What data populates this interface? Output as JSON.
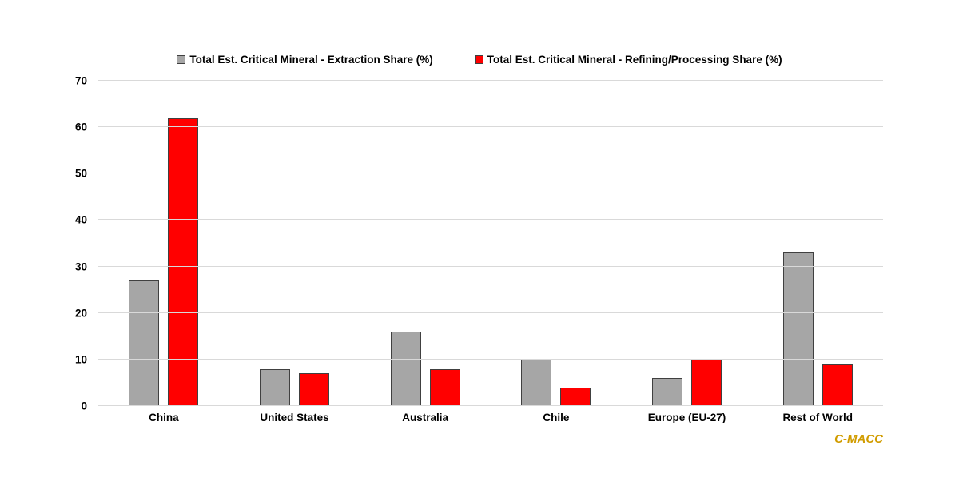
{
  "watermark": {
    "text": "C-MACC",
    "color": "#d19c00"
  },
  "chart_data": {
    "type": "bar",
    "title": "",
    "xlabel": "",
    "ylabel": "",
    "categories": [
      "China",
      "United States",
      "Australia",
      "Chile",
      "Europe (EU-27)",
      "Rest of World"
    ],
    "series": [
      {
        "name": "Total Est. Critical Mineral - Extraction Share (%)",
        "color": "#a6a6a6",
        "values": [
          27,
          8,
          16,
          10,
          6,
          33
        ]
      },
      {
        "name": "Total Est. Critical Mineral - Refining/Processing Share (%)",
        "color": "#ff0000",
        "values": [
          62,
          7,
          8,
          4,
          10,
          9
        ]
      }
    ],
    "ylim": [
      0,
      70
    ],
    "yticks": [
      0,
      10,
      20,
      30,
      40,
      50,
      60,
      70
    ],
    "grid": true,
    "gridline_color": "#d9d9d9",
    "bar_border_color": "#404040",
    "legend_position": "top"
  }
}
